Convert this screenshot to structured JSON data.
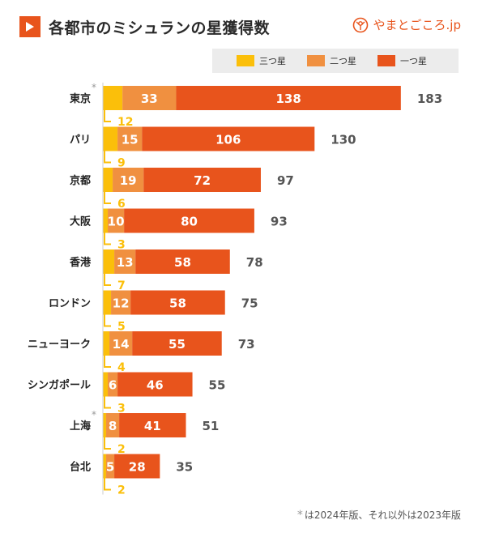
{
  "header": {
    "title": "各都市のミシュランの星獲得数",
    "brand": "やまとごころ.jp"
  },
  "legend": [
    {
      "label": "三つ星",
      "color": "#fbbf0a"
    },
    {
      "label": "二つ星",
      "color": "#f09040"
    },
    {
      "label": "一つ星",
      "color": "#e8541c"
    }
  ],
  "footnote": {
    "star": "*",
    "text": "は2024年版、それ以外は2023年版"
  },
  "chart_data": {
    "type": "bar",
    "orientation": "horizontal",
    "stacked": true,
    "categories": [
      "東京",
      "パリ",
      "京都",
      "大阪",
      "香港",
      "ロンドン",
      "ニューヨーク",
      "シンガポール",
      "上海",
      "台北"
    ],
    "category_marks": [
      "*",
      "",
      "",
      "",
      "",
      "",
      "",
      "",
      "*",
      ""
    ],
    "series": [
      {
        "name": "三つ星",
        "color": "#fbbf0a",
        "values": [
          12,
          9,
          6,
          3,
          7,
          5,
          4,
          3,
          2,
          2
        ]
      },
      {
        "name": "二つ星",
        "color": "#f09040",
        "values": [
          33,
          15,
          19,
          10,
          13,
          12,
          14,
          6,
          8,
          5
        ]
      },
      {
        "name": "一つ星",
        "color": "#e8541c",
        "values": [
          138,
          106,
          72,
          80,
          58,
          58,
          55,
          46,
          41,
          28
        ]
      }
    ],
    "totals": [
      183,
      130,
      97,
      93,
      78,
      75,
      73,
      55,
      51,
      35
    ],
    "grid": false,
    "legend_position": "top-right"
  }
}
